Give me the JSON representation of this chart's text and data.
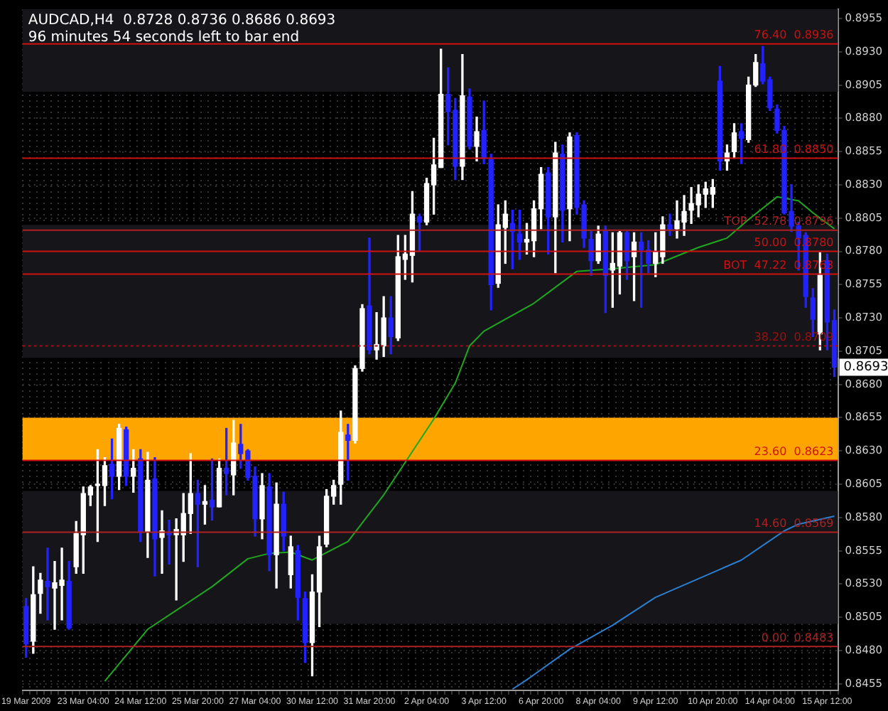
{
  "chart_data": {
    "type": "candlestick",
    "title": "AUDCAD,H4  0.8728 0.8736 0.8686 0.8693",
    "subtitle": "96 minutes 54 seconds left to bar end",
    "categories": [
      "19 Mar 2009",
      null,
      null,
      null,
      null,
      null,
      null,
      null,
      "23 Mar 04:00",
      null,
      null,
      null,
      null,
      null,
      null,
      null,
      "24 Mar 12:00",
      null,
      null,
      null,
      null,
      null,
      null,
      null,
      "25 Mar 20:00",
      null,
      null,
      null,
      null,
      null,
      null,
      null,
      "27 Mar 04:00",
      null,
      null,
      null,
      null,
      null,
      null,
      null,
      "30 Mar 12:00",
      null,
      null,
      null,
      null,
      null,
      null,
      null,
      "31 Mar 20:00",
      null,
      null,
      null,
      null,
      null,
      null,
      null,
      "2 Apr 04:00",
      null,
      null,
      null,
      null,
      null,
      null,
      null,
      "3 Apr 12:00",
      null,
      null,
      null,
      null,
      null,
      null,
      null,
      "6 Apr 20:00",
      null,
      null,
      null,
      null,
      null,
      null,
      null,
      "8 Apr 04:00",
      null,
      null,
      null,
      null,
      null,
      null,
      null,
      "9 Apr 12:00",
      null,
      null,
      null,
      null,
      null,
      null,
      null,
      "10 Apr 20:00",
      null,
      null,
      null,
      null,
      null,
      null,
      null,
      "14 Apr 04:00",
      null,
      null,
      null,
      null,
      null,
      null,
      null,
      "15 Apr 12:00",
      null
    ],
    "ohlc": [
      [
        0.8513,
        0.8519,
        0.8475,
        0.8485
      ],
      [
        0.8487,
        0.8543,
        0.8478,
        0.8522
      ],
      [
        0.8523,
        0.8538,
        0.8508,
        0.8533
      ],
      [
        0.8532,
        0.8557,
        0.8503,
        0.8528
      ],
      [
        0.8527,
        0.8547,
        0.8496,
        0.8531
      ],
      [
        0.8529,
        0.8557,
        0.8503,
        0.8533
      ],
      [
        0.8532,
        0.8547,
        0.8496,
        0.8497
      ],
      [
        0.8543,
        0.8577,
        0.8538,
        0.8568
      ],
      [
        0.8567,
        0.8603,
        0.8538,
        0.8598
      ],
      [
        0.8597,
        0.8604,
        0.8589,
        0.8603
      ],
      [
        0.8604,
        0.8631,
        0.8562,
        0.8605
      ],
      [
        0.8604,
        0.8625,
        0.8589,
        0.8619
      ],
      [
        0.862,
        0.8639,
        0.8594,
        0.8611
      ],
      [
        0.8611,
        0.865,
        0.8601,
        0.8647
      ],
      [
        0.8646,
        0.8648,
        0.8604,
        0.8611
      ],
      [
        0.8611,
        0.8631,
        0.8599,
        0.8617
      ],
      [
        0.8624,
        0.8631,
        0.8562,
        0.8569
      ],
      [
        0.8569,
        0.8629,
        0.855,
        0.8608
      ],
      [
        0.8609,
        0.8625,
        0.8536,
        0.8564
      ],
      [
        0.8565,
        0.8585,
        0.8538,
        0.857
      ],
      [
        0.8568,
        0.8578,
        0.8545,
        0.8567
      ],
      [
        0.8567,
        0.8579,
        0.8518,
        0.8571
      ],
      [
        0.8567,
        0.8598,
        0.8547,
        0.8583
      ],
      [
        0.8583,
        0.8628,
        0.8568,
        0.8598
      ],
      [
        0.8598,
        0.8608,
        0.8543,
        0.859
      ],
      [
        0.859,
        0.8604,
        0.8575,
        0.8592
      ],
      [
        0.8593,
        0.8624,
        0.8578,
        0.8588
      ],
      [
        0.8588,
        0.8624,
        0.8588,
        0.8617
      ],
      [
        0.8617,
        0.8647,
        0.8597,
        0.8613
      ],
      [
        0.8612,
        0.8653,
        0.8597,
        0.8636
      ],
      [
        0.8635,
        0.865,
        0.8617,
        0.8628
      ],
      [
        0.863,
        0.8631,
        0.8608,
        0.861
      ],
      [
        0.8611,
        0.8618,
        0.8566,
        0.8579
      ],
      [
        0.8579,
        0.8613,
        0.8564,
        0.8604
      ],
      [
        0.8603,
        0.8613,
        0.854,
        0.8552
      ],
      [
        0.8552,
        0.8606,
        0.8527,
        0.859
      ],
      [
        0.859,
        0.8599,
        0.8555,
        0.8566
      ],
      [
        0.8537,
        0.8566,
        0.8527,
        0.8558
      ],
      [
        0.8555,
        0.8559,
        0.8503,
        0.852
      ],
      [
        0.8519,
        0.8524,
        0.8471,
        0.8486
      ],
      [
        0.8486,
        0.8537,
        0.8461,
        0.8524
      ],
      [
        0.8524,
        0.8566,
        0.8498,
        0.8558
      ],
      [
        0.856,
        0.8601,
        0.8558,
        0.8596
      ],
      [
        0.8596,
        0.8608,
        0.859,
        0.8604
      ],
      [
        0.8605,
        0.866,
        0.859,
        0.8644
      ],
      [
        0.8642,
        0.865,
        0.8608,
        0.8638
      ],
      [
        0.8638,
        0.8694,
        0.8636,
        0.8692
      ],
      [
        0.8692,
        0.874,
        0.869,
        0.8737
      ],
      [
        0.8739,
        0.879,
        0.8703,
        0.8706
      ],
      [
        0.8706,
        0.8734,
        0.8699,
        0.871
      ],
      [
        0.8709,
        0.8746,
        0.8701,
        0.873
      ],
      [
        0.873,
        0.8746,
        0.8703,
        0.8716
      ],
      [
        0.8715,
        0.8792,
        0.8713,
        0.8776
      ],
      [
        0.8774,
        0.8792,
        0.8759,
        0.8778
      ],
      [
        0.8777,
        0.8825,
        0.8757,
        0.8808
      ],
      [
        0.8806,
        0.8808,
        0.878,
        0.8802
      ],
      [
        0.8802,
        0.8835,
        0.88,
        0.8831
      ],
      [
        0.883,
        0.8865,
        0.8808,
        0.8845
      ],
      [
        0.8843,
        0.8932,
        0.8843,
        0.8898
      ],
      [
        0.8898,
        0.8918,
        0.886,
        0.8885
      ],
      [
        0.8886,
        0.8895,
        0.8834,
        0.8844
      ],
      [
        0.8844,
        0.8928,
        0.8834,
        0.8897
      ],
      [
        0.8896,
        0.8902,
        0.8857,
        0.8859
      ],
      [
        0.8859,
        0.8881,
        0.8848,
        0.887
      ],
      [
        0.8871,
        0.8893,
        0.8846,
        0.885
      ],
      [
        0.8849,
        0.8853,
        0.8736,
        0.8755
      ],
      [
        0.8756,
        0.8815,
        0.8753,
        0.88
      ],
      [
        0.8798,
        0.8818,
        0.8771,
        0.8808
      ],
      [
        0.8801,
        0.8811,
        0.8767,
        0.8795
      ],
      [
        0.8793,
        0.8811,
        0.8774,
        0.8787
      ],
      [
        0.8787,
        0.8801,
        0.8778,
        0.8789
      ],
      [
        0.8788,
        0.8818,
        0.8776,
        0.8812
      ],
      [
        0.8812,
        0.8843,
        0.8797,
        0.8838
      ],
      [
        0.8839,
        0.8843,
        0.8778,
        0.8806
      ],
      [
        0.8806,
        0.8862,
        0.8764,
        0.8854
      ],
      [
        0.8853,
        0.886,
        0.8787,
        0.8811
      ],
      [
        0.8812,
        0.8869,
        0.8788,
        0.8866
      ],
      [
        0.8867,
        0.8869,
        0.8808,
        0.8813
      ],
      [
        0.8815,
        0.8818,
        0.8783,
        0.879
      ],
      [
        0.8789,
        0.8795,
        0.8762,
        0.8773
      ],
      [
        0.8773,
        0.8799,
        0.8771,
        0.8793
      ],
      [
        0.8795,
        0.8799,
        0.8734,
        0.8762
      ],
      [
        0.8766,
        0.8794,
        0.8738,
        0.8771
      ],
      [
        0.8769,
        0.8795,
        0.8748,
        0.8794
      ],
      [
        0.8794,
        0.8795,
        0.8759,
        0.8773
      ],
      [
        0.8776,
        0.8794,
        0.8743,
        0.8787
      ],
      [
        0.8787,
        0.8794,
        0.8738,
        0.8781
      ],
      [
        0.8781,
        0.8788,
        0.8764,
        0.8771
      ],
      [
        0.8771,
        0.8794,
        0.8761,
        0.878
      ],
      [
        0.8776,
        0.8806,
        0.8771,
        0.88
      ],
      [
        0.88,
        0.8808,
        0.8792,
        0.8796
      ],
      [
        0.8797,
        0.8818,
        0.879,
        0.8803
      ],
      [
        0.8802,
        0.8822,
        0.8792,
        0.881
      ],
      [
        0.8811,
        0.8828,
        0.8801,
        0.8816
      ],
      [
        0.8815,
        0.883,
        0.8806,
        0.8823
      ],
      [
        0.8823,
        0.8832,
        0.8813,
        0.8827
      ],
      [
        0.8823,
        0.8834,
        0.8813,
        0.8828
      ],
      [
        0.8908,
        0.8919,
        0.8841,
        0.8848
      ],
      [
        0.8848,
        0.886,
        0.8841,
        0.8854
      ],
      [
        0.8855,
        0.8876,
        0.885,
        0.8869
      ],
      [
        0.887,
        0.8876,
        0.8846,
        0.8865
      ],
      [
        0.8864,
        0.8911,
        0.8862,
        0.8905
      ],
      [
        0.8905,
        0.8928,
        0.8904,
        0.8922
      ],
      [
        0.8921,
        0.8934,
        0.8906,
        0.8908
      ],
      [
        0.8909,
        0.8911,
        0.8886,
        0.8888
      ],
      [
        0.8887,
        0.889,
        0.8869,
        0.8871
      ],
      [
        0.8871,
        0.8874,
        0.8808,
        0.8809
      ],
      [
        0.881,
        0.883,
        0.8795,
        0.8799
      ],
      [
        0.8799,
        0.8802,
        0.8766,
        0.879
      ],
      [
        0.8792,
        0.8794,
        0.8738,
        0.8746
      ],
      [
        0.8745,
        0.8752,
        0.8716,
        0.8729
      ],
      [
        0.8718,
        0.8779,
        0.8706,
        0.8762
      ],
      [
        0.8773,
        0.8778,
        0.8706,
        0.8727
      ],
      [
        0.8728,
        0.8736,
        0.8686,
        0.8693
      ]
    ],
    "colors": [
      "#2222ff",
      "#ffffff",
      "#ffffff",
      "#2222ff",
      "#ffffff",
      "#ffffff",
      "#2222ff",
      "#ffffff",
      "#ffffff",
      "#ffffff",
      "#ffffff",
      "#ffffff",
      "#2222ff",
      "#ffffff",
      "#2222ff",
      "#ffffff",
      "#2222ff",
      "#ffffff",
      "#2222ff",
      "#ffffff",
      "#2222ff",
      "#ffffff",
      "#ffffff",
      "#ffffff",
      "#2222ff",
      "#ffffff",
      "#2222ff",
      "#ffffff",
      "#2222ff",
      "#ffffff",
      "#2222ff",
      "#2222ff",
      "#2222ff",
      "#ffffff",
      "#2222ff",
      "#ffffff",
      "#2222ff",
      "#ffffff",
      "#2222ff",
      "#2222ff",
      "#ffffff",
      "#ffffff",
      "#ffffff",
      "#ffffff",
      "#ffffff",
      "#2222ff",
      "#ffffff",
      "#ffffff",
      "#2222ff",
      "#ffffff",
      "#ffffff",
      "#2222ff",
      "#ffffff",
      "#ffffff",
      "#ffffff",
      "#2222ff",
      "#ffffff",
      "#ffffff",
      "#ffffff",
      "#2222ff",
      "#2222ff",
      "#ffffff",
      "#2222ff",
      "#ffffff",
      "#2222ff",
      "#2222ff",
      "#ffffff",
      "#ffffff",
      "#2222ff",
      "#2222ff",
      "#ffffff",
      "#ffffff",
      "#ffffff",
      "#2222ff",
      "#ffffff",
      "#2222ff",
      "#ffffff",
      "#2222ff",
      "#2222ff",
      "#2222ff",
      "#ffffff",
      "#2222ff",
      "#ffffff",
      "#ffffff",
      "#2222ff",
      "#ffffff",
      "#2222ff",
      "#2222ff",
      "#ffffff",
      "#ffffff",
      "#2222ff",
      "#ffffff",
      "#ffffff",
      "#ffffff",
      "#ffffff",
      "#ffffff",
      "#ffffff",
      "#2222ff",
      "#ffffff",
      "#ffffff",
      "#2222ff",
      "#ffffff",
      "#ffffff",
      "#2222ff",
      "#2222ff",
      "#2222ff",
      "#2222ff",
      "#2222ff",
      "#2222ff",
      "#2222ff",
      "#2222ff",
      "#ffffff",
      "#2222ff",
      "#2222ff"
    ],
    "series": [
      {
        "type": "line",
        "color": "#1fa81f",
        "values": [
          null,
          null,
          null,
          null,
          null,
          null,
          null,
          null,
          null,
          null,
          null,
          0.8457,
          null,
          null,
          null,
          null,
          null,
          0.8496,
          null,
          null,
          null,
          null,
          null,
          null,
          null,
          null,
          0.8528,
          null,
          null,
          null,
          null,
          0.8549,
          null,
          null,
          0.8553,
          null,
          null,
          0.8554,
          null,
          null,
          0.8548,
          null,
          null,
          null,
          null,
          0.8562,
          null,
          null,
          null,
          null,
          0.8597,
          null,
          null,
          null,
          null,
          null,
          null,
          0.8654,
          null,
          null,
          0.8681,
          null,
          0.8709,
          null,
          0.872,
          null,
          null,
          null,
          null,
          null,
          null,
          0.8741,
          null,
          null,
          null,
          null,
          null,
          0.8765,
          null,
          null,
          null,
          null,
          0.8767,
          null,
          null,
          null,
          null,
          null,
          0.877,
          null,
          null,
          null,
          null,
          null,
          0.8783,
          null,
          null,
          null,
          0.879,
          null,
          null,
          0.8804,
          null,
          null,
          null,
          0.8821,
          null,
          null,
          0.8818,
          null,
          0.8809,
          null,
          null,
          0.8797
        ]
      },
      {
        "type": "line",
        "color": "#2a7fd0",
        "values": [
          null,
          null,
          null,
          null,
          null,
          null,
          null,
          null,
          null,
          null,
          null,
          null,
          null,
          null,
          null,
          null,
          null,
          null,
          null,
          null,
          null,
          null,
          null,
          null,
          null,
          null,
          null,
          null,
          null,
          null,
          null,
          null,
          null,
          null,
          null,
          null,
          null,
          null,
          null,
          null,
          null,
          null,
          null,
          null,
          null,
          null,
          null,
          null,
          null,
          null,
          null,
          null,
          null,
          null,
          null,
          null,
          null,
          null,
          null,
          null,
          null,
          null,
          null,
          null,
          null,
          null,
          null,
          null,
          0.8451,
          null,
          0.8458,
          null,
          null,
          null,
          null,
          null,
          0.8481,
          null,
          null,
          null,
          null,
          null,
          0.8499,
          null,
          null,
          null,
          null,
          null,
          0.852,
          null,
          null,
          null,
          null,
          null,
          null,
          null,
          null,
          0.8541,
          null,
          null,
          0.8548,
          null,
          null,
          null,
          null,
          null,
          0.857,
          null,
          0.8575,
          null,
          null,
          null,
          null,
          0.8581
        ]
      }
    ],
    "ylim": [
      0.845,
      0.8962
    ],
    "yticks": [
      {
        "value": 0.8455,
        "label": "0.8455"
      },
      {
        "value": 0.848,
        "label": "0.8480"
      },
      {
        "value": 0.8505,
        "label": "0.8505"
      },
      {
        "value": 0.853,
        "label": "0.8530"
      },
      {
        "value": 0.8555,
        "label": "0.8555"
      },
      {
        "value": 0.858,
        "label": "0.8580"
      },
      {
        "value": 0.8605,
        "label": "0.8605"
      },
      {
        "value": 0.863,
        "label": "0.8630"
      },
      {
        "value": 0.8655,
        "label": "0.8655"
      },
      {
        "value": 0.868,
        "label": "0.8680"
      },
      {
        "value": 0.8705,
        "label": "0.8705"
      },
      {
        "value": 0.873,
        "label": "0.8730"
      },
      {
        "value": 0.8755,
        "label": "0.8755"
      },
      {
        "value": 0.878,
        "label": "0.8780"
      },
      {
        "value": 0.8805,
        "label": "0.8805"
      },
      {
        "value": 0.883,
        "label": "0.8830"
      },
      {
        "value": 0.8855,
        "label": "0.8855"
      },
      {
        "value": 0.888,
        "label": "0.8880"
      },
      {
        "value": 0.8905,
        "label": "0.8905"
      },
      {
        "value": 0.893,
        "label": "0.8930"
      },
      {
        "value": 0.8955,
        "label": "0.8955"
      }
    ],
    "bands": [
      {
        "axis": "y",
        "from": 0.89,
        "to": 0.8962,
        "color": "#16161a"
      },
      {
        "axis": "y",
        "from": 0.87,
        "to": 0.88,
        "color": "#16161a"
      },
      {
        "axis": "y",
        "from": 0.85,
        "to": 0.86,
        "color": "#16161a"
      },
      {
        "axis": "y",
        "from": 0.8623,
        "to": 0.8655,
        "color": "#ffa500"
      }
    ],
    "ref_lines": [
      {
        "axis": "y",
        "value": 0.8936,
        "label": "76.40  0.8936",
        "color": "#d01010"
      },
      {
        "axis": "y",
        "value": 0.885,
        "label": "61.80  0.8850",
        "color": "#d01010"
      },
      {
        "axis": "y",
        "value": 0.8796,
        "label": "TOP  52.78  0.8796",
        "color": "#b02020"
      },
      {
        "axis": "y",
        "value": 0.878,
        "label": "50.00  0.8780",
        "color": "#d01010"
      },
      {
        "axis": "y",
        "value": 0.8763,
        "label": "BOT  47.22  0.8763",
        "color": "#d01010"
      },
      {
        "axis": "y",
        "value": 0.8709,
        "label": "38.20  0.8709",
        "color": "#a01010",
        "line_style": "dotted"
      },
      {
        "axis": "y",
        "value": 0.8623,
        "label": "23.60  0.8623",
        "color": "#d01010"
      },
      {
        "axis": "y",
        "value": 0.8569,
        "label": "14.60  0.8569",
        "color": "#b02020"
      },
      {
        "axis": "y",
        "value": 0.8483,
        "label": "0.00  0.8483",
        "color": "#b02020"
      }
    ],
    "annotations": [
      {
        "text": "0.8693",
        "y": 0.8693
      }
    ],
    "grid": true,
    "legend": false
  }
}
